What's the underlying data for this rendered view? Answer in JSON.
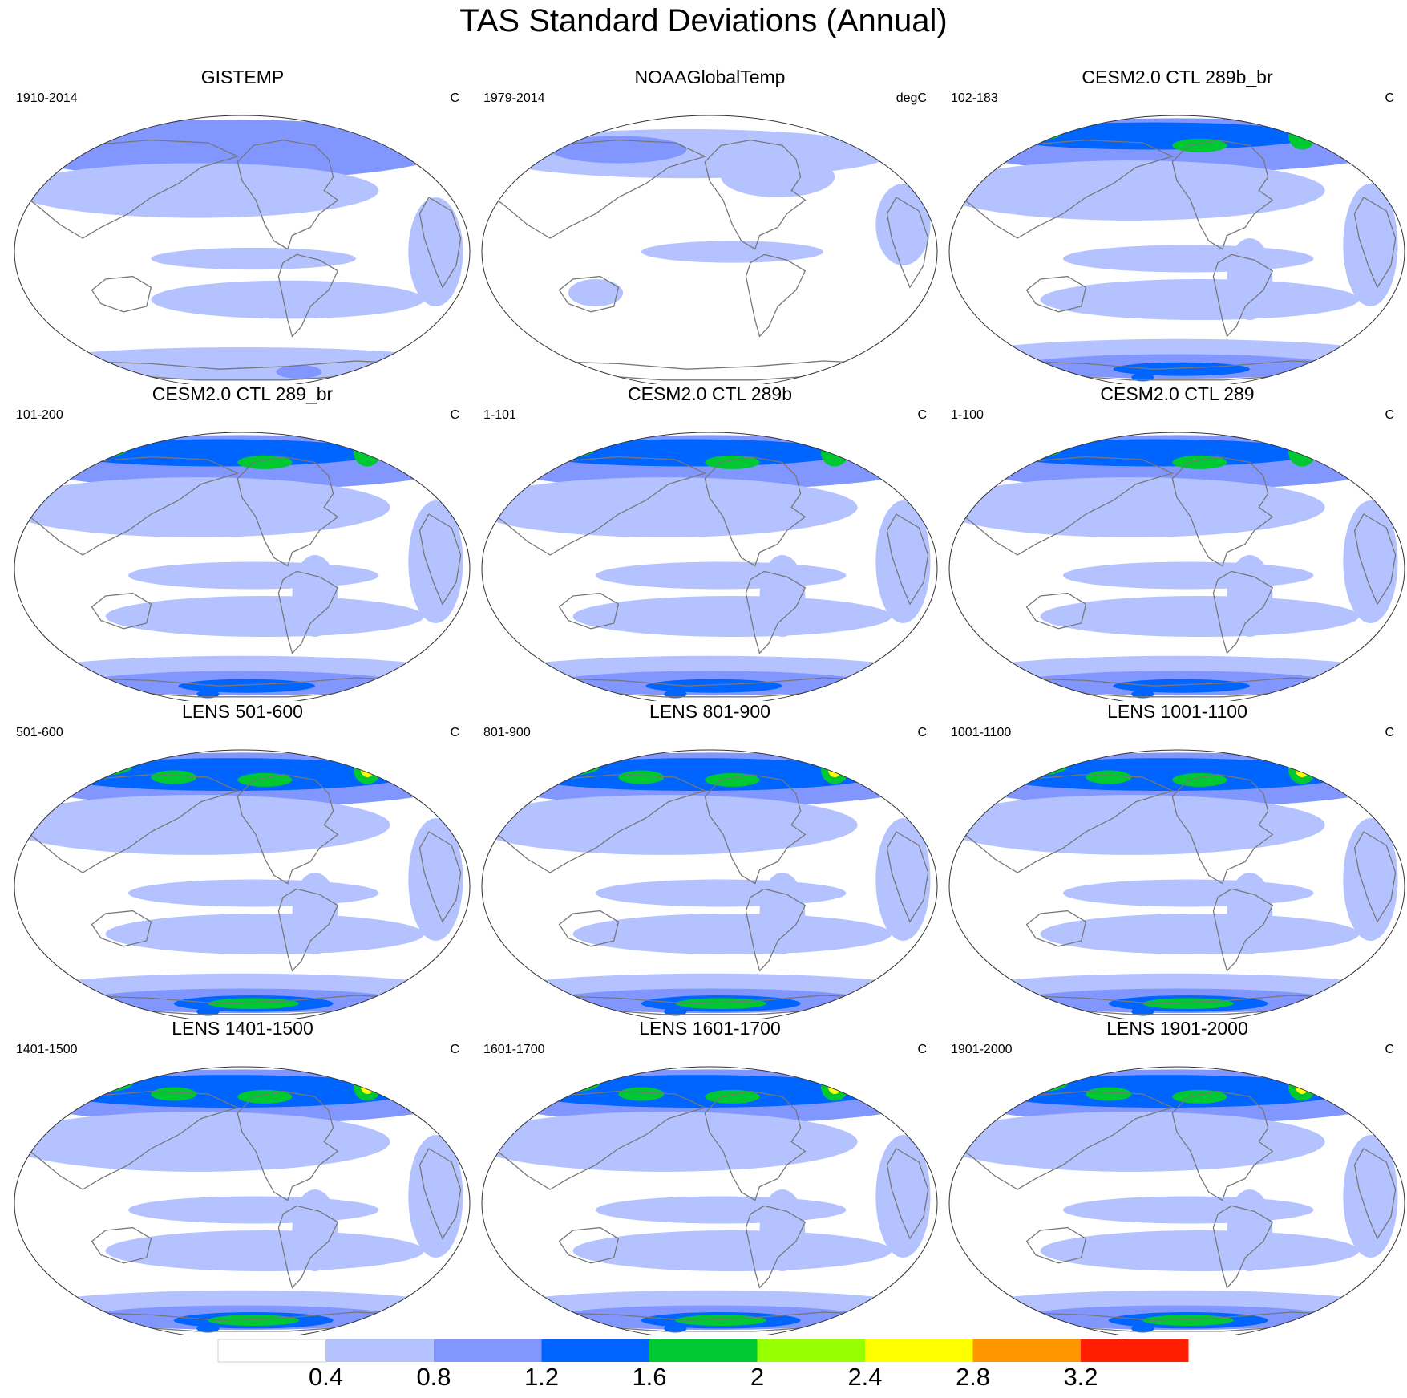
{
  "title": "TAS Standard Deviations (Annual)",
  "panels": [
    {
      "title": "GISTEMP",
      "period": "1910-2014",
      "units": "C",
      "style": "obs1"
    },
    {
      "title": "NOAAGlobalTemp",
      "period": "1979-2014",
      "units": "degC",
      "style": "obs2"
    },
    {
      "title": "CESM2.0 CTL 289b_br",
      "period": "102-183",
      "units": "C",
      "style": "model"
    },
    {
      "title": "CESM2.0 CTL 289_br",
      "period": "101-200",
      "units": "C",
      "style": "model"
    },
    {
      "title": "CESM2.0 CTL 289b",
      "period": "1-101",
      "units": "C",
      "style": "model"
    },
    {
      "title": "CESM2.0 CTL 289",
      "period": "1-100",
      "units": "C",
      "style": "model"
    },
    {
      "title": "LENS 501-600",
      "period": "501-600",
      "units": "C",
      "style": "lens"
    },
    {
      "title": "LENS 801-900",
      "period": "801-900",
      "units": "C",
      "style": "lens"
    },
    {
      "title": "LENS 1001-1100",
      "period": "1001-1100",
      "units": "C",
      "style": "lens"
    },
    {
      "title": "LENS 1401-1500",
      "period": "1401-1500",
      "units": "C",
      "style": "lens"
    },
    {
      "title": "LENS 1601-1700",
      "period": "1601-1700",
      "units": "C",
      "style": "lens"
    },
    {
      "title": "LENS 1901-2000",
      "period": "1901-2000",
      "units": "C",
      "style": "lens"
    }
  ],
  "colorbar": {
    "labels": [
      "0.4",
      "0.8",
      "1.2",
      "1.6",
      "2",
      "2.4",
      "2.8",
      "3.2"
    ],
    "colors": [
      "#ffffff",
      "#b4c3ff",
      "#8296ff",
      "#0064ff",
      "#00c832",
      "#96ff00",
      "#ffff00",
      "#ff9600",
      "#ff1e00"
    ]
  },
  "colors": {
    "level1": "#b4c3ff",
    "level2": "#8296ff",
    "level3": "#0064ff",
    "level4": "#00c832",
    "level5": "#96ff00",
    "level6": "#ffff00",
    "coastline": "#777777",
    "map_border": "#333333"
  }
}
